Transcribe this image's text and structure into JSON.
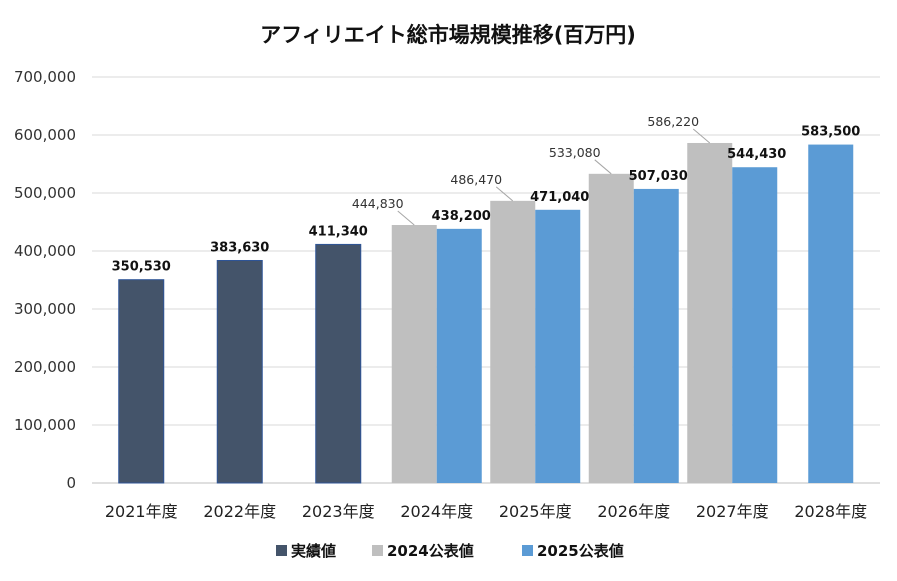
{
  "chart_data": {
    "type": "bar",
    "title": "アフィリエイト総市場規模推移(百万円)",
    "categories": [
      "2021年度",
      "2022年度",
      "2023年度",
      "2024年度",
      "2025年度",
      "2026年度",
      "2027年度",
      "2028年度"
    ],
    "ylim": [
      0,
      700000
    ],
    "yticks": [
      0,
      100000,
      200000,
      300000,
      400000,
      500000,
      600000,
      700000
    ],
    "ytick_labels": [
      "0",
      "100,000",
      "200,000",
      "300,000",
      "400,000",
      "500,000",
      "600,000",
      "700,000"
    ],
    "grid": true,
    "legend_position": "bottom",
    "series": [
      {
        "name": "実績値",
        "color": "#44546a",
        "values": [
          350530,
          383630,
          411340,
          null,
          null,
          null,
          null,
          null
        ],
        "labels": [
          "350,530",
          "383,630",
          "411,340",
          "",
          "",
          "",
          "",
          ""
        ]
      },
      {
        "name": "2024公表値",
        "color": "#bfbfbf",
        "values": [
          null,
          null,
          null,
          444830,
          486470,
          533080,
          586220,
          null
        ],
        "labels": [
          "",
          "",
          "",
          "444,830",
          "486,470",
          "533,080",
          "586,220",
          ""
        ]
      },
      {
        "name": "2025公表値",
        "color": "#5b9bd5",
        "values": [
          null,
          null,
          null,
          438200,
          471040,
          507030,
          544430,
          583500
        ],
        "labels": [
          "",
          "",
          "",
          "438,200",
          "471,040",
          "507,030",
          "544,430",
          "583,500"
        ]
      }
    ]
  }
}
